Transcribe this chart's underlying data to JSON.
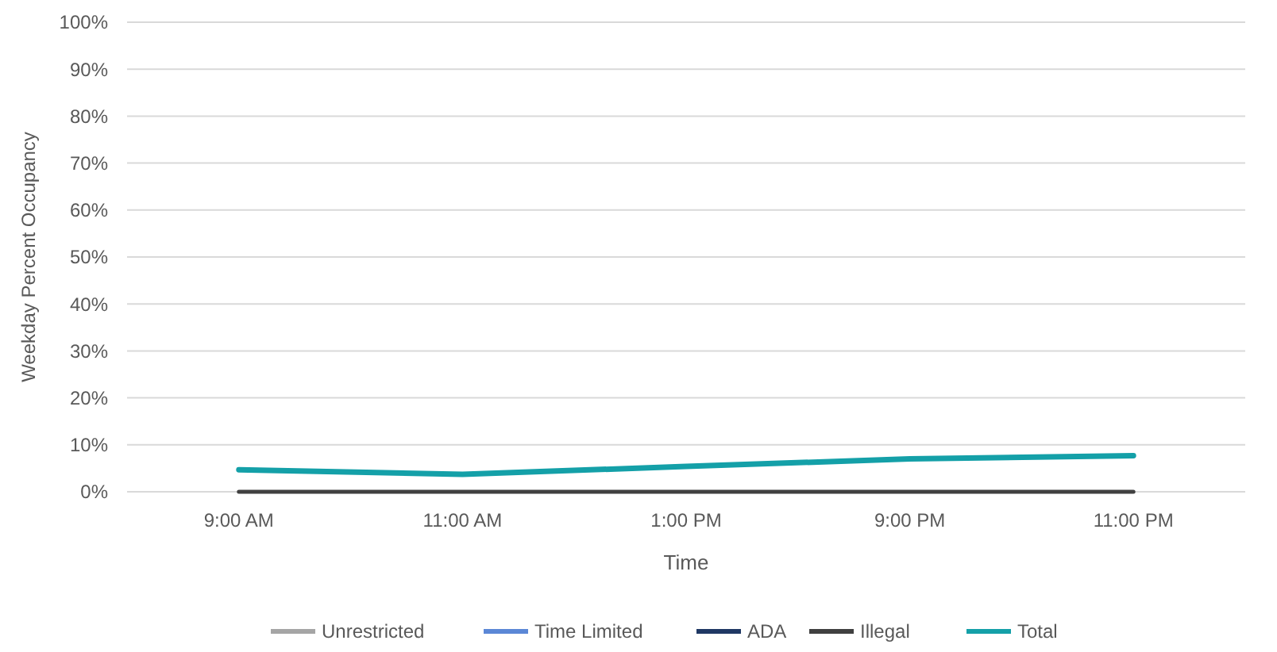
{
  "chart_data": {
    "type": "line",
    "xlabel": "Time",
    "ylabel": "Weekday Percent Occupancy",
    "categories": [
      "9:00 AM",
      "11:00 AM",
      "1:00 PM",
      "9:00 PM",
      "11:00 PM"
    ],
    "series": [
      {
        "name": "Unrestricted",
        "color": "#a5a5a5",
        "values": [
          null,
          null,
          null,
          null,
          null
        ]
      },
      {
        "name": "Time Limited",
        "color": "#5b87d6",
        "values": [
          null,
          null,
          null,
          null,
          null
        ]
      },
      {
        "name": "ADA",
        "color": "#1f3864",
        "values": [
          null,
          null,
          null,
          null,
          null
        ]
      },
      {
        "name": "Illegal",
        "color": "#404040",
        "values": [
          0,
          0,
          0,
          0,
          0
        ]
      },
      {
        "name": "Total",
        "color": "#14a0a8",
        "values": [
          4.7,
          3.7,
          5.4,
          7,
          7.7
        ]
      }
    ],
    "ylim": [
      0,
      100
    ],
    "yticks": [
      {
        "value": 0,
        "label": "0%"
      },
      {
        "value": 10,
        "label": "10%"
      },
      {
        "value": 20,
        "label": "20%"
      },
      {
        "value": 30,
        "label": "30%"
      },
      {
        "value": 40,
        "label": "40%"
      },
      {
        "value": 50,
        "label": "50%"
      },
      {
        "value": 60,
        "label": "60%"
      },
      {
        "value": 70,
        "label": "70%"
      },
      {
        "value": 80,
        "label": "80%"
      },
      {
        "value": 90,
        "label": "90%"
      },
      {
        "value": 100,
        "label": "100%"
      }
    ],
    "grid": "y",
    "legend": "bottom",
    "marker": "none",
    "line_style": "solid"
  }
}
